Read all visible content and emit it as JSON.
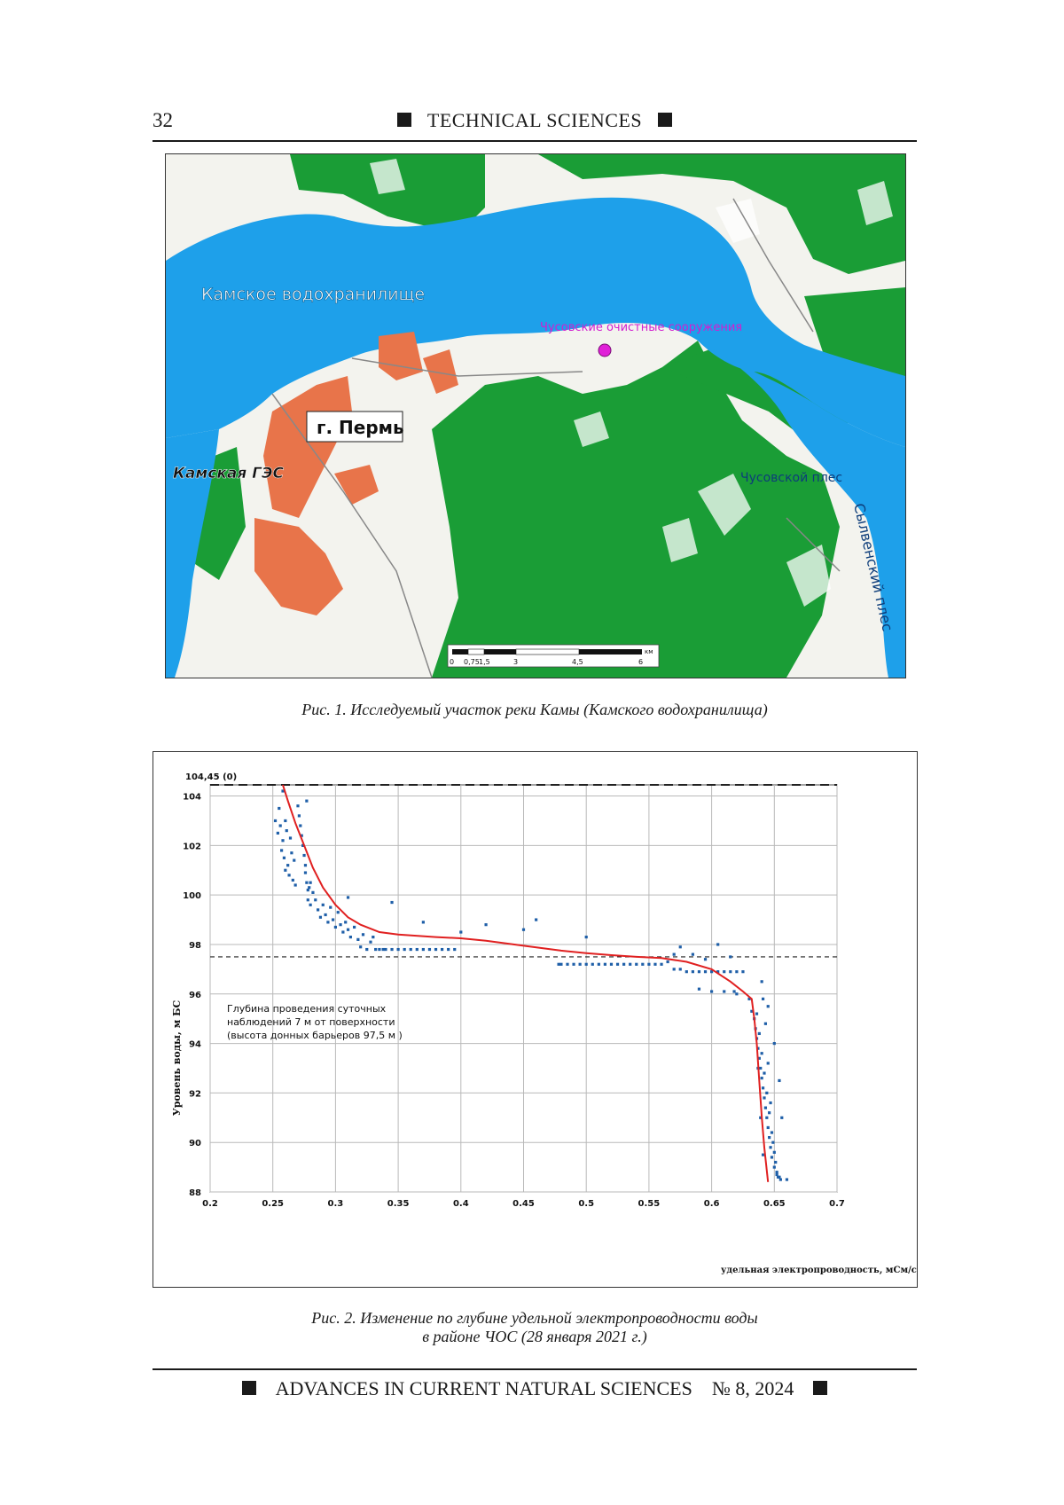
{
  "header": {
    "page_number": "32",
    "section": "TECHNICAL SCIENCES"
  },
  "figure1": {
    "labels": {
      "reservoir": "Камское водохранилище",
      "plant": "Чусовские очистные сооружения",
      "city": "г. Пермь",
      "dam": "Камская ГЭС",
      "reach1": "Чусовской плес",
      "reach2": "Сылвенский плес"
    },
    "scale_bar": {
      "ticks": [
        "0",
        "0,75",
        "1,5",
        "3",
        "4,5",
        "6"
      ],
      "unit": "км"
    },
    "caption": "Рис. 1. Исследуемый участок реки Камы (Камского водохранилища)",
    "colors": {
      "water": "#1ea0ea",
      "forest": "#1a9d36",
      "urban": "#e8744a",
      "plant_marker": "#e020d8"
    }
  },
  "figure2": {
    "caption_line1": "Рис. 2. Изменение по глубине удельной электропроводности воды",
    "caption_line2": "в районе ЧОС (28 января 2021 г.)",
    "annotation": {
      "line1": "Глубина проведения суточных",
      "line2": "наблюдений 7 м от поверхности",
      "line3": "(высота донных барьеров 97,5 м )"
    }
  },
  "chart_data": {
    "type": "scatter",
    "xlabel": "удельная электропроводность, мСм/см",
    "ylabel": "Уровень воды, м БС",
    "xlim": [
      0.2,
      0.7
    ],
    "ylim": [
      88,
      104.45
    ],
    "x_ticks": [
      "0.2",
      "0.25",
      "0.3",
      "0.35",
      "0.4",
      "0.45",
      "0.5",
      "0.55",
      "0.6",
      "0.65",
      "0.7"
    ],
    "y_ticks": [
      "88",
      "90",
      "92",
      "94",
      "96",
      "98",
      "100",
      "102",
      "104"
    ],
    "top_label": "104,45 (0)",
    "grid": true,
    "reference_lines": [
      {
        "y": 104.45,
        "style": "dashed"
      },
      {
        "y": 97.5,
        "style": "dashed"
      }
    ],
    "trend_curve": {
      "color": "#e02020",
      "x": [
        0.258,
        0.262,
        0.268,
        0.275,
        0.282,
        0.29,
        0.3,
        0.31,
        0.32,
        0.335,
        0.35,
        0.38,
        0.4,
        0.42,
        0.45,
        0.48,
        0.5,
        0.52,
        0.54,
        0.56,
        0.58,
        0.6,
        0.615,
        0.625,
        0.632,
        0.634,
        0.636,
        0.638,
        0.64,
        0.642,
        0.645
      ],
      "y": [
        104.45,
        103.8,
        102.9,
        102.0,
        101.1,
        100.3,
        99.6,
        99.1,
        98.8,
        98.5,
        98.4,
        98.3,
        98.25,
        98.15,
        97.95,
        97.75,
        97.65,
        97.57,
        97.5,
        97.45,
        97.3,
        97.0,
        96.5,
        96.1,
        95.8,
        95.0,
        94.0,
        92.5,
        91.0,
        89.8,
        88.4
      ]
    },
    "measurements": {
      "color": "#1f5fa8",
      "x": [
        0.252,
        0.254,
        0.255,
        0.256,
        0.257,
        0.258,
        0.258,
        0.259,
        0.26,
        0.26,
        0.261,
        0.262,
        0.263,
        0.264,
        0.265,
        0.266,
        0.267,
        0.268,
        0.27,
        0.271,
        0.272,
        0.273,
        0.274,
        0.275,
        0.276,
        0.276,
        0.277,
        0.277,
        0.278,
        0.278,
        0.279,
        0.28,
        0.28,
        0.282,
        0.284,
        0.286,
        0.288,
        0.29,
        0.292,
        0.294,
        0.296,
        0.298,
        0.3,
        0.302,
        0.304,
        0.306,
        0.308,
        0.31,
        0.312,
        0.315,
        0.318,
        0.32,
        0.322,
        0.325,
        0.328,
        0.33,
        0.332,
        0.335,
        0.338,
        0.34,
        0.345,
        0.35,
        0.355,
        0.36,
        0.365,
        0.37,
        0.375,
        0.38,
        0.385,
        0.39,
        0.395,
        0.31,
        0.345,
        0.37,
        0.4,
        0.42,
        0.45,
        0.478,
        0.48,
        0.485,
        0.49,
        0.495,
        0.5,
        0.505,
        0.51,
        0.515,
        0.52,
        0.525,
        0.53,
        0.535,
        0.54,
        0.545,
        0.55,
        0.555,
        0.56,
        0.565,
        0.57,
        0.575,
        0.58,
        0.585,
        0.59,
        0.595,
        0.6,
        0.605,
        0.61,
        0.615,
        0.62,
        0.625,
        0.59,
        0.6,
        0.61,
        0.618,
        0.62,
        0.63,
        0.632,
        0.634,
        0.635,
        0.636,
        0.637,
        0.638,
        0.639,
        0.64,
        0.641,
        0.642,
        0.643,
        0.644,
        0.645,
        0.646,
        0.647,
        0.648,
        0.65,
        0.652,
        0.654,
        0.655,
        0.636,
        0.638,
        0.64,
        0.642,
        0.644,
        0.646,
        0.648,
        0.65,
        0.652,
        0.64,
        0.645,
        0.65,
        0.654,
        0.656,
        0.66,
        0.641,
        0.643,
        0.645,
        0.647,
        0.649,
        0.651,
        0.653,
        0.637,
        0.639,
        0.641,
        0.57,
        0.575,
        0.585,
        0.595,
        0.605,
        0.615,
        0.5,
        0.46
      ],
      "y": [
        103.0,
        102.5,
        103.5,
        102.8,
        101.8,
        102.2,
        104.2,
        101.5,
        103.0,
        101.0,
        102.6,
        101.2,
        100.8,
        102.3,
        101.7,
        100.6,
        101.4,
        100.4,
        103.6,
        103.2,
        102.8,
        102.4,
        102.0,
        101.6,
        101.2,
        100.9,
        100.5,
        103.8,
        100.2,
        99.8,
        100.3,
        100.5,
        99.6,
        100.1,
        99.8,
        99.4,
        99.1,
        99.6,
        99.2,
        98.9,
        99.5,
        99.0,
        98.7,
        99.3,
        98.8,
        98.5,
        98.9,
        98.6,
        98.3,
        98.7,
        98.2,
        97.9,
        98.4,
        97.8,
        98.1,
        98.3,
        97.8,
        97.8,
        97.8,
        97.8,
        97.8,
        97.8,
        97.8,
        97.8,
        97.8,
        97.8,
        97.8,
        97.8,
        97.8,
        97.8,
        97.8,
        99.9,
        99.7,
        98.9,
        98.5,
        98.8,
        98.6,
        97.2,
        97.2,
        97.2,
        97.2,
        97.2,
        97.2,
        97.2,
        97.2,
        97.2,
        97.2,
        97.2,
        97.2,
        97.2,
        97.2,
        97.2,
        97.2,
        97.2,
        97.2,
        97.3,
        97.0,
        97.0,
        96.9,
        96.9,
        96.9,
        96.9,
        96.9,
        96.9,
        96.9,
        96.9,
        96.9,
        96.9,
        96.2,
        96.1,
        96.1,
        96.1,
        96.0,
        95.8,
        95.3,
        95.0,
        94.6,
        94.2,
        93.8,
        93.4,
        93.0,
        92.6,
        92.2,
        91.8,
        91.4,
        91.0,
        90.6,
        90.2,
        89.8,
        89.4,
        89.0,
        88.7,
        88.6,
        88.5,
        95.2,
        94.4,
        93.6,
        92.8,
        92.0,
        91.2,
        90.4,
        89.6,
        88.8,
        96.5,
        95.5,
        94.0,
        92.5,
        91.0,
        88.5,
        95.8,
        94.8,
        93.2,
        91.6,
        90.0,
        89.2,
        88.6,
        93.0,
        91.0,
        89.5,
        97.6,
        97.9,
        97.6,
        97.4,
        98.0,
        97.5,
        98.3,
        99.0
      ]
    }
  },
  "footer": {
    "journal": "ADVANCES IN CURRENT NATURAL SCIENCES",
    "issue": "№ 8, 2024"
  }
}
